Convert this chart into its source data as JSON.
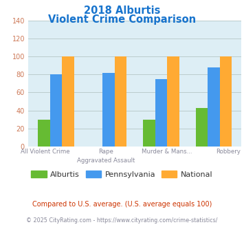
{
  "title_line1": "2018 Alburtis",
  "title_line2": "Violent Crime Comparison",
  "title_color": "#1874CD",
  "categories_line1": [
    "All Violent Crime",
    "Rape",
    "Murder & Mans...",
    "Robbery"
  ],
  "categories_line2": [
    "",
    "Aggravated Assault",
    "",
    ""
  ],
  "alburtis": [
    30,
    0,
    30,
    43
  ],
  "pennsylvania": [
    80,
    82,
    75,
    88
  ],
  "national": [
    100,
    100,
    100,
    100
  ],
  "alburtis_color": "#66bb33",
  "pennsylvania_color": "#4499ee",
  "national_color": "#ffaa33",
  "bg_color": "#ddeef5",
  "ylim": [
    0,
    140
  ],
  "yticks": [
    0,
    20,
    40,
    60,
    80,
    100,
    120,
    140
  ],
  "legend_labels": [
    "Alburtis",
    "Pennsylvania",
    "National"
  ],
  "footnote1": "Compared to U.S. average. (U.S. average equals 100)",
  "footnote2": "© 2025 CityRating.com - https://www.cityrating.com/crime-statistics/",
  "footnote1_color": "#cc3300",
  "footnote2_color": "#888899",
  "grid_color": "#bbcccc",
  "ytick_color": "#cc7755",
  "xtick_color": "#888899"
}
